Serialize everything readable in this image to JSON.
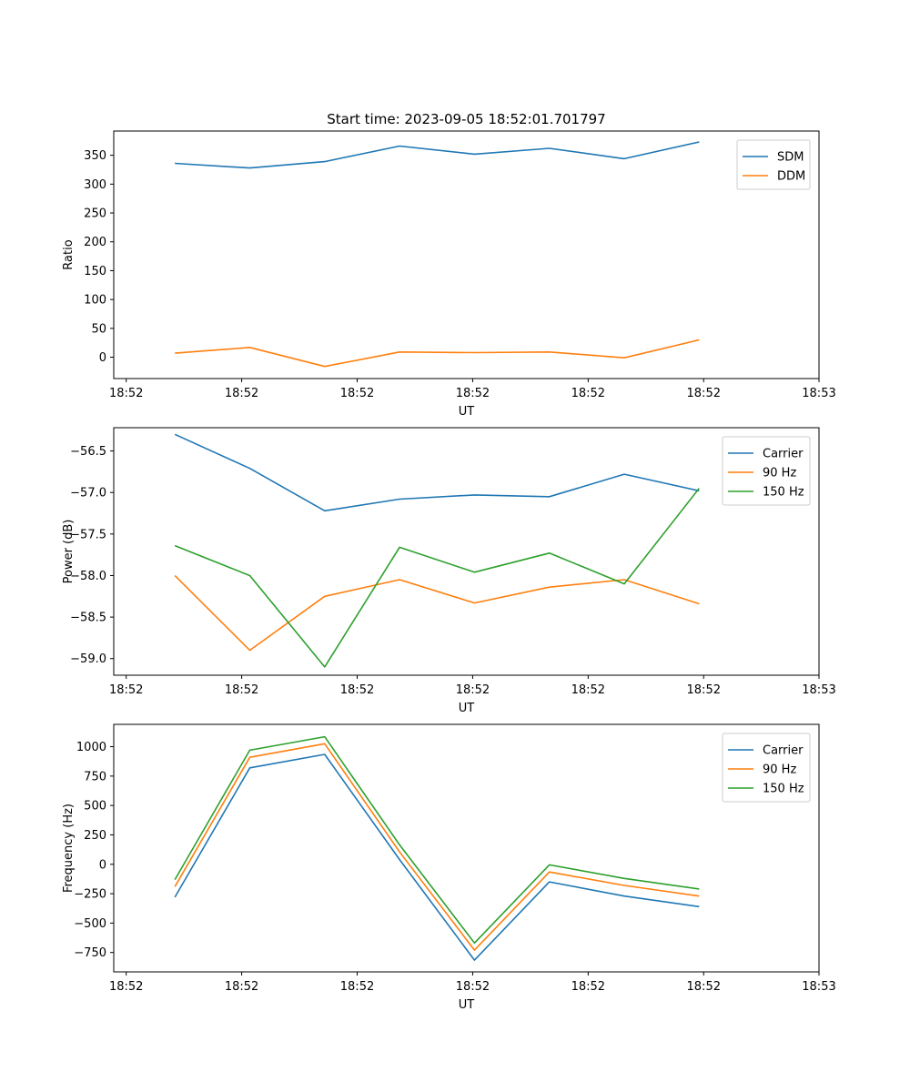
{
  "figure_title": "Start time: 2023-09-05 18:52:01.701797",
  "colors": {
    "c0": "#1f77b4",
    "c1": "#ff7f0e",
    "c2": "#2ca02c"
  },
  "chart_data": [
    {
      "type": "line",
      "title": "Start time: 2023-09-05 18:52:01.701797",
      "xlabel": "UT",
      "ylabel": "Ratio",
      "x": [
        1,
        2,
        3,
        4,
        5,
        6,
        7,
        8
      ],
      "xlim": [
        0.1837,
        9.6
      ],
      "ylim": [
        -37,
        392
      ],
      "xticks": [
        {
          "value": 0.35,
          "label": "18:52"
        },
        {
          "value": 1.892,
          "label": "18:52"
        },
        {
          "value": 3.434,
          "label": "18:52"
        },
        {
          "value": 4.976,
          "label": "18:52"
        },
        {
          "value": 6.518,
          "label": "18:52"
        },
        {
          "value": 8.06,
          "label": "18:52"
        },
        {
          "value": 9.6,
          "label": "18:53"
        }
      ],
      "yticks": [
        {
          "value": 0,
          "label": "0"
        },
        {
          "value": 50,
          "label": "50"
        },
        {
          "value": 100,
          "label": "100"
        },
        {
          "value": 150,
          "label": "150"
        },
        {
          "value": 200,
          "label": "200"
        },
        {
          "value": 250,
          "label": "250"
        },
        {
          "value": 300,
          "label": "300"
        },
        {
          "value": 350,
          "label": "350"
        }
      ],
      "series": [
        {
          "name": "SDM",
          "color": "#1f77b4",
          "values": [
            336,
            328,
            339,
            366,
            352,
            362,
            344,
            373
          ]
        },
        {
          "name": "DDM",
          "color": "#ff7f0e",
          "values": [
            7,
            17,
            -16,
            9,
            8,
            9,
            -1,
            30
          ]
        }
      ]
    },
    {
      "type": "line",
      "title": "",
      "xlabel": "UT",
      "ylabel": "Power (dB)",
      "x": [
        1,
        2,
        3,
        4,
        5,
        6,
        7,
        8
      ],
      "xlim": [
        0.1837,
        9.6
      ],
      "ylim": [
        -59.2,
        -56.22
      ],
      "xticks": [
        {
          "value": 0.35,
          "label": "18:52"
        },
        {
          "value": 1.892,
          "label": "18:52"
        },
        {
          "value": 3.434,
          "label": "18:52"
        },
        {
          "value": 4.976,
          "label": "18:52"
        },
        {
          "value": 6.518,
          "label": "18:52"
        },
        {
          "value": 8.06,
          "label": "18:52"
        },
        {
          "value": 9.6,
          "label": "18:53"
        }
      ],
      "yticks": [
        {
          "value": -59.0,
          "label": "−59.0"
        },
        {
          "value": -58.5,
          "label": "−58.5"
        },
        {
          "value": -58.0,
          "label": "−58.0"
        },
        {
          "value": -57.5,
          "label": "−57.5"
        },
        {
          "value": -57.0,
          "label": "−57.0"
        },
        {
          "value": -56.5,
          "label": "−56.5"
        }
      ],
      "series": [
        {
          "name": "Carrier",
          "color": "#1f77b4",
          "values": [
            -56.3,
            -56.71,
            -57.22,
            -57.08,
            -57.03,
            -57.05,
            -56.78,
            -56.98
          ]
        },
        {
          "name": "90 Hz",
          "color": "#ff7f0e",
          "values": [
            -58.0,
            -58.9,
            -58.25,
            -58.05,
            -58.33,
            -58.14,
            -58.05,
            -58.34
          ]
        },
        {
          "name": "150 Hz",
          "color": "#2ca02c",
          "values": [
            -57.64,
            -58.0,
            -59.1,
            -57.66,
            -57.96,
            -57.73,
            -58.1,
            -56.95
          ]
        }
      ]
    },
    {
      "type": "line",
      "title": "",
      "xlabel": "UT",
      "ylabel": "Frequency (Hz)",
      "x": [
        1,
        2,
        3,
        4,
        5,
        6,
        7,
        8
      ],
      "xlim": [
        0.1837,
        9.6
      ],
      "ylim": [
        -915,
        1190
      ],
      "xticks": [
        {
          "value": 0.35,
          "label": "18:52"
        },
        {
          "value": 1.892,
          "label": "18:52"
        },
        {
          "value": 3.434,
          "label": "18:52"
        },
        {
          "value": 4.976,
          "label": "18:52"
        },
        {
          "value": 6.518,
          "label": "18:52"
        },
        {
          "value": 8.06,
          "label": "18:52"
        },
        {
          "value": 9.6,
          "label": "18:53"
        }
      ],
      "yticks": [
        {
          "value": -750,
          "label": "−750"
        },
        {
          "value": -500,
          "label": "−500"
        },
        {
          "value": -250,
          "label": "−250"
        },
        {
          "value": 0,
          "label": "0"
        },
        {
          "value": 250,
          "label": "250"
        },
        {
          "value": 500,
          "label": "500"
        },
        {
          "value": 750,
          "label": "750"
        },
        {
          "value": 1000,
          "label": "1000"
        }
      ],
      "series": [
        {
          "name": "Carrier",
          "color": "#1f77b4",
          "values": [
            -280,
            820,
            935,
            40,
            -815,
            -150,
            -270,
            -360
          ]
        },
        {
          "name": "90 Hz",
          "color": "#ff7f0e",
          "values": [
            -190,
            910,
            1025,
            105,
            -730,
            -65,
            -180,
            -270
          ]
        },
        {
          "name": "150 Hz",
          "color": "#2ca02c",
          "values": [
            -130,
            970,
            1085,
            165,
            -670,
            -5,
            -120,
            -210
          ]
        }
      ]
    }
  ]
}
